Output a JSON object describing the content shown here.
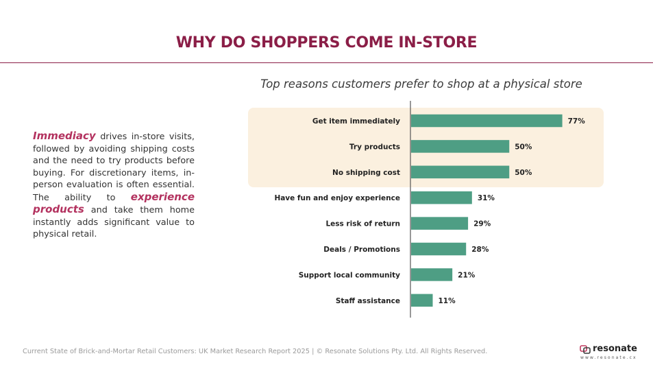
{
  "page": {
    "title": "WHY DO SHOPPERS COME IN-STORE",
    "body": {
      "em1": "Immediacy",
      "text1": " drives in-store visits, followed by avoiding shipping costs and the need to try products before buying. For discretionary items, in-person evaluation is often essential. The ability to ",
      "em2": "experience products",
      "text2": " and take them home instantly adds significant value to physical retail."
    },
    "footer": "Current State of Brick-and-Mortar Retail Customers: UK Market Research Report 2025 | © Resonate Solutions Pty. Ltd. All Rights Reserved.",
    "logo": {
      "name": "resonate",
      "url": "www.resonate.cx"
    }
  },
  "colors": {
    "bar": "#4e9e84",
    "title": "#8b1e47",
    "accent": "#b3325f",
    "highlight": "#fbf0df"
  },
  "chart_data": {
    "type": "bar",
    "orientation": "horizontal",
    "title": "Top reasons customers prefer to shop at a physical store",
    "categories": [
      "Get item immediately",
      "Try products",
      "No shipping cost",
      "Have fun and enjoy experience",
      "Less risk of return",
      "Deals / Promotions",
      "Support local community",
      "Staff assistance"
    ],
    "values": [
      77,
      50,
      50,
      31,
      29,
      28,
      21,
      11
    ],
    "labels": [
      "77%",
      "50%",
      "50%",
      "31%",
      "29%",
      "28%",
      "21%",
      "11%"
    ],
    "unit": "%",
    "highlighted_categories": [
      "Get item immediately",
      "Try products",
      "No shipping cost"
    ],
    "grid": false,
    "legend": "none"
  }
}
